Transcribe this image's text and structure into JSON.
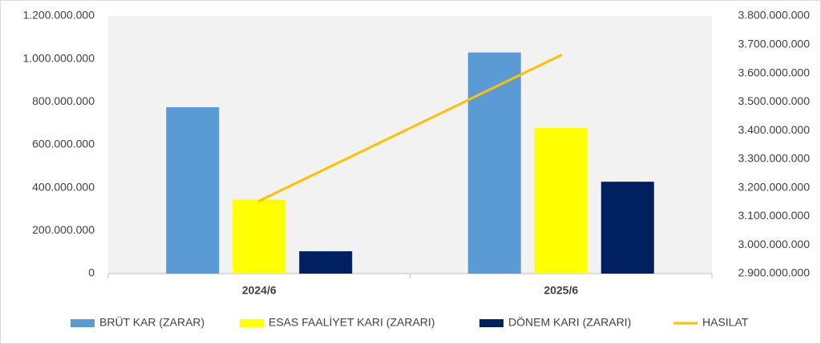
{
  "chart_data": {
    "type": "bar",
    "categories": [
      "2024/6",
      "2025/6"
    ],
    "series": [
      {
        "name": "BRÜT KAR (ZARAR)",
        "color": "#5b9bd5",
        "values": [
          775000000,
          1030000000
        ]
      },
      {
        "name": "ESAS FAALİYET KARI (ZARARI)",
        "color": "#ffff00",
        "values": [
          345000000,
          678000000
        ]
      },
      {
        "name": "DÖNEM KARI (ZARARI)",
        "color": "#002060",
        "values": [
          104000000,
          428000000
        ]
      },
      {
        "name": "HASILAT",
        "color": "#ffc000",
        "type": "line",
        "axis": "y2",
        "values": [
          3154000000,
          3663000000
        ]
      }
    ],
    "ylim": [
      0,
      1200000000
    ],
    "yticks": [
      0,
      {
        "value": 200000000,
        "label": "200.000.000"
      },
      {
        "value": 400000000,
        "label": "400.000.000"
      },
      {
        "value": 600000000,
        "label": "600.000.000"
      },
      {
        "value": 800000000,
        "label": "800.000.000"
      },
      {
        "value": 1000000000,
        "label": "1.000.000.000"
      },
      {
        "value": 1200000000,
        "label": "1.200.000.000"
      }
    ],
    "y2lim": [
      2900000000,
      3800000000
    ],
    "y2ticks": [
      {
        "value": 2900000000,
        "label": "2.900.000.000"
      },
      {
        "value": 3000000000,
        "label": "3.000.000.000"
      },
      {
        "value": 3100000000,
        "label": "3.100.000.000"
      },
      {
        "value": 3200000000,
        "label": "3.200.000.000"
      },
      {
        "value": 3300000000,
        "label": "3.300.000.000"
      },
      {
        "value": 3400000000,
        "label": "3.400.000.000"
      },
      {
        "value": 3500000000,
        "label": "3.500.000.000"
      },
      {
        "value": 3600000000,
        "label": "3.600.000.000"
      },
      {
        "value": 3700000000,
        "label": "3.700.000.000"
      },
      {
        "value": 3800000000,
        "label": "3.800.000.000"
      }
    ],
    "grid": false,
    "legend": "bottom"
  }
}
